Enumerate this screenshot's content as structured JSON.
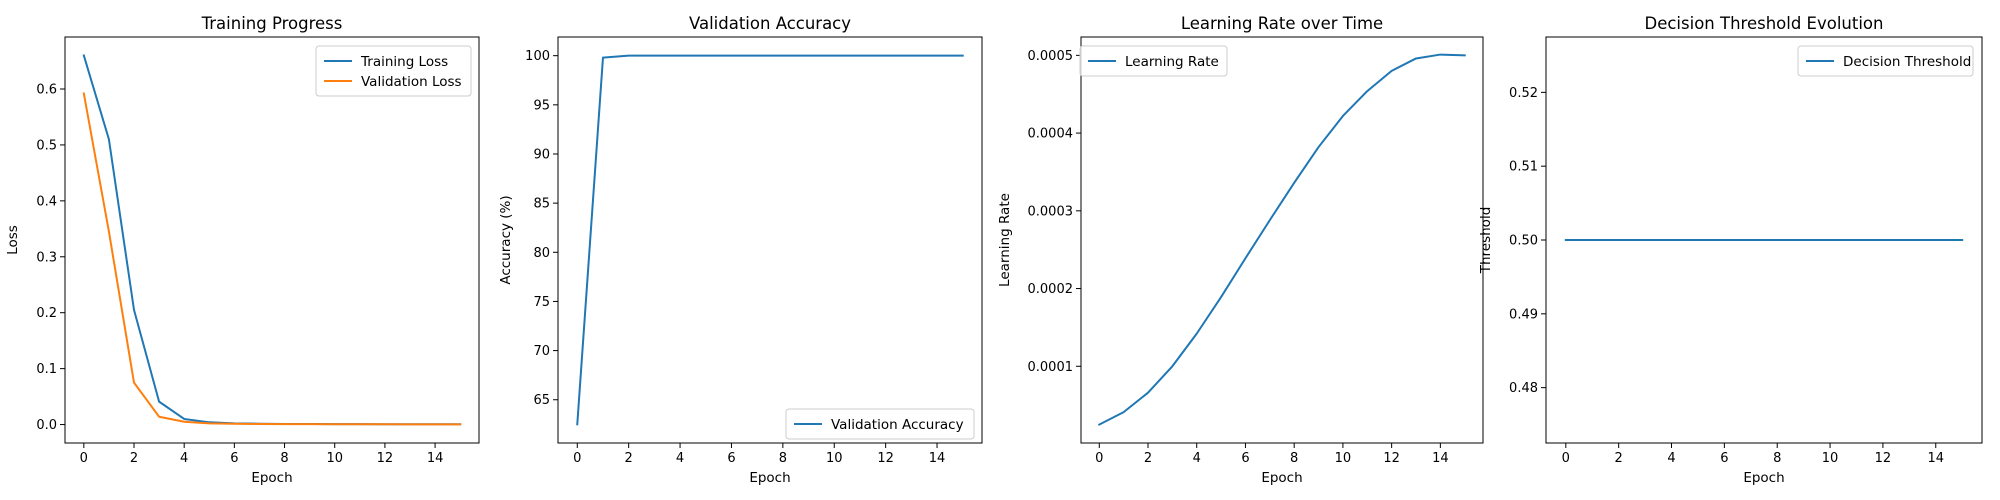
{
  "colors": {
    "series1": "#1f77b4",
    "series2": "#ff7f0e"
  },
  "chart_data": [
    {
      "type": "line",
      "title": "Training Progress",
      "xlabel": "Epoch",
      "ylabel": "Loss",
      "xlim": [
        -0.75,
        15.75
      ],
      "ylim": [
        -0.033,
        0.693
      ],
      "xticks": [
        0,
        2,
        4,
        6,
        8,
        10,
        12,
        14
      ],
      "yticks": [
        0.0,
        0.1,
        0.2,
        0.3,
        0.4,
        0.5,
        0.6
      ],
      "ytick_labels": [
        "0.0",
        "0.1",
        "0.2",
        "0.3",
        "0.4",
        "0.5",
        "0.6"
      ],
      "legend_position": "upper right",
      "x": [
        0,
        1,
        2,
        3,
        4,
        5,
        6,
        7,
        8,
        9,
        10,
        11,
        12,
        13,
        14,
        15
      ],
      "series": [
        {
          "name": "Training Loss",
          "color": "#1f77b4",
          "values": [
            0.66,
            0.51,
            0.205,
            0.041,
            0.01,
            0.004,
            0.002,
            0.0015,
            0.001,
            0.001,
            0.0008,
            0.0007,
            0.0006,
            0.0005,
            0.0005,
            0.0005
          ]
        },
        {
          "name": "Validation Loss",
          "color": "#ff7f0e",
          "values": [
            0.592,
            0.345,
            0.075,
            0.014,
            0.005,
            0.002,
            0.0015,
            0.001,
            0.0008,
            0.0007,
            0.0006,
            0.0005,
            0.0005,
            0.0004,
            0.0004,
            0.0004
          ]
        }
      ]
    },
    {
      "type": "line",
      "title": "Validation Accuracy",
      "xlabel": "Epoch",
      "ylabel": "Accuracy (%)",
      "xlim": [
        -0.75,
        15.75
      ],
      "ylim": [
        60.6,
        101.9
      ],
      "xticks": [
        0,
        2,
        4,
        6,
        8,
        10,
        12,
        14
      ],
      "yticks": [
        65,
        70,
        75,
        80,
        85,
        90,
        95,
        100
      ],
      "ytick_labels": [
        "65",
        "70",
        "75",
        "80",
        "85",
        "90",
        "95",
        "100"
      ],
      "legend_position": "lower right",
      "x": [
        0,
        1,
        2,
        3,
        4,
        5,
        6,
        7,
        8,
        9,
        10,
        11,
        12,
        13,
        14,
        15
      ],
      "series": [
        {
          "name": "Validation Accuracy",
          "color": "#1f77b4",
          "values": [
            62.5,
            99.8,
            100,
            100,
            100,
            100,
            100,
            100,
            100,
            100,
            100,
            100,
            100,
            100,
            100,
            100
          ]
        }
      ]
    },
    {
      "type": "line",
      "title": "Learning Rate over Time",
      "xlabel": "Epoch",
      "ylabel": "Learning Rate",
      "xlim": [
        -0.75,
        15.75
      ],
      "ylim": [
        1.3e-06,
        0.0005236
      ],
      "xticks": [
        0,
        2,
        4,
        6,
        8,
        10,
        12,
        14
      ],
      "yticks": [
        0.0001,
        0.0002,
        0.0003,
        0.0004,
        0.0005
      ],
      "ytick_labels": [
        "0.0001",
        "0.0002",
        "0.0003",
        "0.0004",
        "0.0005"
      ],
      "legend_position": "upper left",
      "x": [
        0,
        1,
        2,
        3,
        4,
        5,
        6,
        7,
        8,
        9,
        10,
        11,
        12,
        13,
        14,
        15
      ],
      "series": [
        {
          "name": "Learning Rate",
          "color": "#1f77b4",
          "values": [
            2.5e-05,
            4.1e-05,
            6.6e-05,
            0.0001,
            0.000142,
            0.000189,
            0.000239,
            0.000288,
            0.000336,
            0.000382,
            0.000422,
            0.000454,
            0.00048,
            0.000496,
            0.000501,
            0.0005
          ]
        }
      ]
    },
    {
      "type": "line",
      "title": "Decision Threshold Evolution",
      "xlabel": "Epoch",
      "ylabel": "Threshold",
      "xlim": [
        -0.75,
        15.75
      ],
      "ylim": [
        0.4725,
        0.5275
      ],
      "xticks": [
        0,
        2,
        4,
        6,
        8,
        10,
        12,
        14
      ],
      "yticks": [
        0.48,
        0.49,
        0.5,
        0.51,
        0.52
      ],
      "ytick_labels": [
        "0.48",
        "0.49",
        "0.50",
        "0.51",
        "0.52"
      ],
      "legend_position": "upper right",
      "x": [
        0,
        1,
        2,
        3,
        4,
        5,
        6,
        7,
        8,
        9,
        10,
        11,
        12,
        13,
        14,
        15
      ],
      "series": [
        {
          "name": "Decision Threshold",
          "color": "#1f77b4",
          "values": [
            0.5,
            0.5,
            0.5,
            0.5,
            0.5,
            0.5,
            0.5,
            0.5,
            0.5,
            0.5,
            0.5,
            0.5,
            0.5,
            0.5,
            0.5,
            0.5
          ]
        }
      ]
    }
  ]
}
